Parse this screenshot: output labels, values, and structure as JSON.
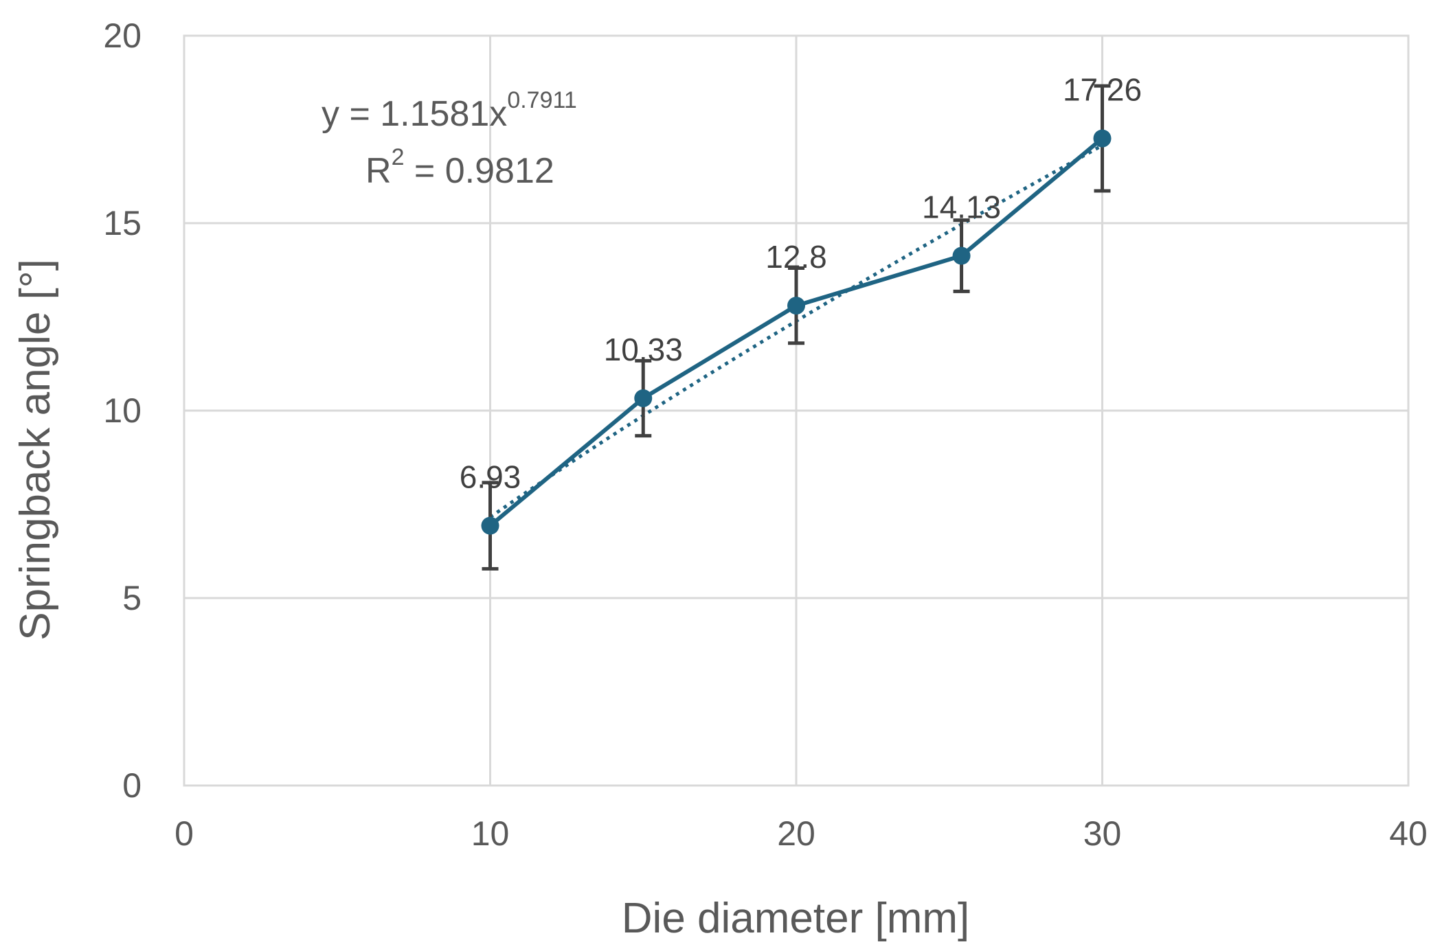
{
  "chart_data": {
    "type": "scatter",
    "title": "",
    "xlabel": "Die diameter [mm]",
    "ylabel": "Springback angle  [°]",
    "xlim": [
      0,
      40
    ],
    "ylim": [
      0,
      20
    ],
    "xticks": [
      "0",
      "10",
      "20",
      "30",
      "40"
    ],
    "yticks": [
      "0",
      "5",
      "10",
      "15",
      "20"
    ],
    "grid": true,
    "series": [
      {
        "x": [
          10,
          15,
          20,
          25.4,
          30
        ],
        "y": [
          6.93,
          10.33,
          12.8,
          14.13,
          17.26
        ],
        "labels": [
          "6.93",
          "10.33",
          "12.8",
          "14.13",
          "17.26"
        ],
        "error": [
          1.15,
          1.0,
          1.0,
          0.95,
          1.4
        ],
        "color": "#1f6483",
        "line": "solid",
        "marker": "circle"
      }
    ],
    "trendline": {
      "type": "power",
      "a": 1.1581,
      "b": 0.7911,
      "x_range": [
        10,
        30
      ],
      "color": "#1f6483",
      "style": "dotted"
    },
    "equation": {
      "eq_prefix": "y = 1.1581x",
      "eq_exponent": "0.7911",
      "r2_prefix": "R",
      "r2_sup": "2",
      "r2_value": " = 0.9812"
    }
  }
}
